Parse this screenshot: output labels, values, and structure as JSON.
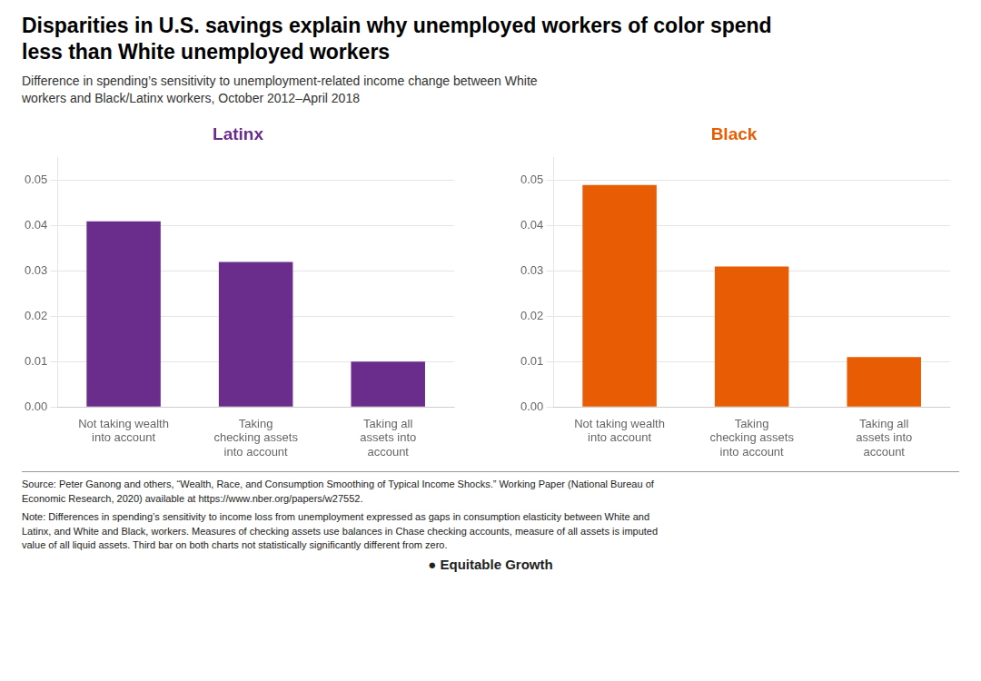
{
  "title": "Disparities in U.S. savings explain why unemployed workers of color spend\nless than White unemployed workers",
  "subtitle": "Difference in spending’s sensitivity to unemployment-related income change between White\nworkers and Black/Latinx workers, October 2012–April 2018",
  "annotations": [
    "Source: Peter Ganong and others, “Wealth, Race, and Consumption Smoothing of Typical Income Shocks.” Working Paper (National Bureau of\nEconomic Research, 2020) available at https://www.nber.org/papers/w27552.",
    "Note: Differences in spending’s sensitivity to income loss from unemployment expressed as gaps in consumption elasticity between White and\nLatinx, and White and Black, workers. Measures of checking assets use balances in Chase checking accounts, measure of all assets is imputed\nvalue of all liquid assets. Third bar on both charts not statistically significantly different from zero.",
    "● Equitable Growth"
  ],
  "chart_data": [
    {
      "type": "bar",
      "title": "Latinx",
      "categories": [
        "Not taking wealth\ninto account",
        "Taking\nchecking assets\ninto account",
        "Taking all\nassets into\naccount"
      ],
      "values": [
        0.041,
        0.032,
        0.01
      ],
      "color": "#6B2D8B",
      "ylim": [
        0,
        0.055
      ],
      "yticks": [
        {
          "value": 0,
          "label": "0.00"
        },
        0.01,
        0.02,
        0.03,
        0.04,
        0.05
      ],
      "grid": true
    },
    {
      "type": "bar",
      "title": "Black",
      "categories": [
        "Not taking wealth\ninto account",
        "Taking\nchecking assets\ninto account",
        "Taking all\nassets into\naccount"
      ],
      "values": [
        0.049,
        0.031,
        0.011
      ],
      "color": "#E85D04",
      "ylim": [
        0,
        0.055
      ],
      "yticks": [
        {
          "value": 0,
          "label": "0.00"
        },
        0.01,
        0.02,
        0.03,
        0.04,
        0.05
      ],
      "grid": true
    }
  ]
}
